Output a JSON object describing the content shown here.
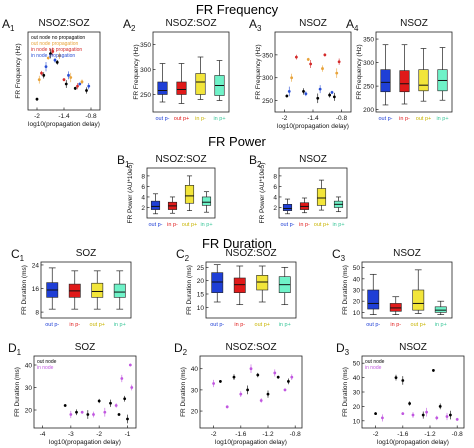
{
  "sections": {
    "frequency": "FR Frequency",
    "power": "FR Power",
    "duration": "FR Duration"
  },
  "colors": {
    "out_no_prop": "#000000",
    "out_prop": "#e8a33a",
    "in_no_prop": "#d42a2a",
    "in_prop": "#2a4fd4",
    "box_blue": "#1f3fd6",
    "box_red": "#e01a1a",
    "box_yellow": "#f2e53a",
    "box_cyan": "#6ff2c8",
    "in_node_purple": "#c157e0"
  },
  "chart_data": [
    {
      "id": "A1",
      "panel_label": "A",
      "panel_sub": "1",
      "type": "scatter",
      "title": "NSOZ:SOZ",
      "xlabel": "log10(propagation delay)",
      "ylabel": "FR Frequency (Hz)",
      "xticks": [
        -2,
        -1.4,
        -0.8
      ],
      "xlim": [
        -2.2,
        -0.6
      ],
      "ylim": [
        220,
        400
      ],
      "legend": [
        "out node no propagation",
        "out node propagation",
        "in node no propagation",
        "in node propagation"
      ],
      "legend_position": "top-left",
      "series": [
        {
          "name": "out node no propagation",
          "color_key": "out_no_prop",
          "points": [
            [
              -2.0,
              245
            ],
            [
              -1.85,
              300
            ],
            [
              -1.7,
              350
            ],
            [
              -1.55,
              330
            ],
            [
              -1.35,
              280
            ],
            [
              -1.15,
              270
            ],
            [
              -0.9,
              265
            ]
          ]
        },
        {
          "name": "out node propagation",
          "color_key": "out_prop",
          "points": [
            [
              -1.95,
              290
            ],
            [
              -1.75,
              340
            ],
            [
              -1.5,
              345
            ],
            [
              -1.25,
              295
            ],
            [
              -1.0,
              285
            ]
          ]
        },
        {
          "name": "in node no propagation",
          "color_key": "in_no_prop",
          "points": [
            [
              -1.9,
              305
            ],
            [
              -1.65,
              355
            ],
            [
              -1.4,
              290
            ],
            [
              -1.1,
              275
            ]
          ]
        },
        {
          "name": "in node propagation",
          "color_key": "in_prop",
          "points": [
            [
              -1.8,
              320
            ],
            [
              -1.6,
              335
            ],
            [
              -1.3,
              300
            ],
            [
              -1.05,
              280
            ],
            [
              -0.85,
              275
            ]
          ]
        }
      ]
    },
    {
      "id": "A2",
      "panel_label": "A",
      "panel_sub": "2",
      "type": "box",
      "title": "NSOZ:SOZ",
      "ylabel": "FR Frequency (Hz)",
      "yticks": [
        250,
        300,
        350
      ],
      "ylim": [
        215,
        375
      ],
      "categories": [
        "out p-",
        "out p+",
        "in p-",
        "in p+"
      ],
      "boxes": [
        {
          "min": 235,
          "q1": 250,
          "median": 258,
          "q3": 275,
          "max": 312,
          "color_key": "box_blue"
        },
        {
          "min": 232,
          "q1": 250,
          "median": 260,
          "q3": 275,
          "max": 312,
          "color_key": "box_red"
        },
        {
          "min": 240,
          "q1": 250,
          "median": 275,
          "q3": 292,
          "max": 325,
          "color_key": "box_yellow"
        },
        {
          "min": 238,
          "q1": 248,
          "median": 268,
          "q3": 288,
          "max": 318,
          "color_key": "box_cyan"
        }
      ]
    },
    {
      "id": "A3",
      "panel_label": "A",
      "panel_sub": "3",
      "type": "scatter",
      "title": "NSOZ",
      "xlabel": "log10(propagation delay)",
      "ylabel": "FR Frequency (Hz)",
      "xticks": [
        -2,
        -1.4,
        -0.8
      ],
      "xlim": [
        -2.2,
        -0.6
      ],
      "yticks": [
        250,
        300,
        350
      ],
      "ylim": [
        225,
        400
      ],
      "series": [
        {
          "name": "out node no propagation",
          "color_key": "out_no_prop",
          "points": [
            [
              -1.95,
              260
            ],
            [
              -1.6,
              270
            ],
            [
              -1.3,
              255
            ],
            [
              -1.05,
              262
            ],
            [
              -0.95,
              258
            ]
          ]
        },
        {
          "name": "out node propagation",
          "color_key": "out_prop",
          "points": [
            [
              -1.85,
              300
            ],
            [
              -1.5,
              340
            ],
            [
              -1.2,
              320
            ],
            [
              -0.9,
              310
            ]
          ]
        },
        {
          "name": "in node no propagation",
          "color_key": "in_no_prop",
          "points": [
            [
              -1.75,
              345
            ],
            [
              -1.45,
              330
            ],
            [
              -1.15,
              350
            ],
            [
              -0.85,
              335
            ]
          ]
        },
        {
          "name": "in node propagation",
          "color_key": "in_prop",
          "points": [
            [
              -1.9,
              270
            ],
            [
              -1.55,
              265
            ],
            [
              -1.25,
              275
            ],
            [
              -1.0,
              268
            ]
          ]
        }
      ]
    },
    {
      "id": "A4",
      "panel_label": "A",
      "panel_sub": "4",
      "type": "box",
      "title": "NSOZ",
      "ylabel": "FR Frequency (Hz)",
      "yticks": [
        200,
        250,
        300,
        350
      ],
      "ylim": [
        195,
        365
      ],
      "categories": [
        "out p-",
        "in p-",
        "out p+",
        "in p+"
      ],
      "boxes": [
        {
          "min": 210,
          "q1": 238,
          "median": 258,
          "q3": 285,
          "max": 338,
          "color_key": "box_blue"
        },
        {
          "min": 212,
          "q1": 238,
          "median": 255,
          "q3": 283,
          "max": 338,
          "color_key": "box_red"
        },
        {
          "min": 218,
          "q1": 240,
          "median": 252,
          "q3": 285,
          "max": 330,
          "color_key": "box_yellow"
        },
        {
          "min": 220,
          "q1": 240,
          "median": 262,
          "q3": 285,
          "max": 332,
          "color_key": "box_cyan"
        }
      ]
    },
    {
      "id": "B1",
      "panel_label": "B",
      "panel_sub": "1",
      "type": "box",
      "title": "NSOZ:SOZ",
      "ylabel": "FR Power (AU*10e5)",
      "yticks": [
        2,
        4,
        6,
        8
      ],
      "ylim": [
        0,
        9.5
      ],
      "categories": [
        "out p-",
        "in p-",
        "out p+",
        "in p+"
      ],
      "boxes": [
        {
          "min": 0.8,
          "q1": 1.6,
          "median": 2.2,
          "q3": 3.2,
          "max": 4.6,
          "color_key": "box_blue"
        },
        {
          "min": 0.9,
          "q1": 1.6,
          "median": 2.3,
          "q3": 3.0,
          "max": 4.0,
          "color_key": "box_red"
        },
        {
          "min": 1.4,
          "q1": 2.8,
          "median": 4.2,
          "q3": 6.2,
          "max": 8.0,
          "color_key": "box_yellow"
        },
        {
          "min": 1.1,
          "q1": 2.4,
          "median": 3.0,
          "q3": 4.0,
          "max": 5.0,
          "color_key": "box_cyan"
        }
      ]
    },
    {
      "id": "B2",
      "panel_label": "B",
      "panel_sub": "2",
      "type": "box",
      "title": "NSOZ",
      "ylabel": "FR Power (AU*10e5)",
      "yticks": [
        2,
        4,
        6,
        8
      ],
      "ylim": [
        0,
        9.5
      ],
      "categories": [
        "out p-",
        "in p-",
        "out p+",
        "in p+"
      ],
      "boxes": [
        {
          "min": 0.8,
          "q1": 1.4,
          "median": 1.8,
          "q3": 2.6,
          "max": 3.6,
          "color_key": "box_blue"
        },
        {
          "min": 1.0,
          "q1": 1.6,
          "median": 2.2,
          "q3": 2.9,
          "max": 3.8,
          "color_key": "box_red"
        },
        {
          "min": 1.5,
          "q1": 2.4,
          "median": 3.8,
          "q3": 5.6,
          "max": 7.2,
          "color_key": "box_yellow"
        },
        {
          "min": 1.2,
          "q1": 2.0,
          "median": 2.6,
          "q3": 3.2,
          "max": 4.0,
          "color_key": "box_cyan"
        }
      ]
    },
    {
      "id": "C1",
      "panel_label": "C",
      "panel_sub": "1",
      "type": "box",
      "title": "SOZ",
      "ylabel": "FR Duration (ms)",
      "yticks": [
        8,
        16,
        24
      ],
      "ylim": [
        6,
        25
      ],
      "categories": [
        "out p-",
        "in p-",
        "out p+",
        "in p+"
      ],
      "boxes": [
        {
          "min": 9,
          "q1": 13,
          "median": 15.5,
          "q3": 18,
          "max": 23,
          "color_key": "box_blue"
        },
        {
          "min": 9,
          "q1": 13,
          "median": 15.2,
          "q3": 17.5,
          "max": 22,
          "color_key": "box_red"
        },
        {
          "min": 9,
          "q1": 13,
          "median": 15.0,
          "q3": 17.8,
          "max": 22,
          "color_key": "box_yellow"
        },
        {
          "min": 9,
          "q1": 13,
          "median": 14.8,
          "q3": 17.5,
          "max": 22,
          "color_key": "box_cyan"
        }
      ]
    },
    {
      "id": "C2",
      "panel_label": "C",
      "panel_sub": "2",
      "type": "box",
      "title": "NSOZ:SOZ",
      "ylabel": "FR Duration (ms)",
      "yticks": [
        10,
        15,
        20,
        25
      ],
      "ylim": [
        6,
        27
      ],
      "categories": [
        "out p-",
        "in p-",
        "out p+",
        "in p+"
      ],
      "boxes": [
        {
          "min": 12,
          "q1": 15.5,
          "median": 19.5,
          "q3": 23,
          "max": 26,
          "color_key": "box_blue"
        },
        {
          "min": 11,
          "q1": 15.5,
          "median": 18.5,
          "q3": 21,
          "max": 25.5,
          "color_key": "box_red"
        },
        {
          "min": 12,
          "q1": 16.5,
          "median": 19.5,
          "q3": 22,
          "max": 25.5,
          "color_key": "box_yellow"
        },
        {
          "min": 11,
          "q1": 15.5,
          "median": 18.5,
          "q3": 21.5,
          "max": 25,
          "color_key": "box_cyan"
        }
      ]
    },
    {
      "id": "C3",
      "panel_label": "C",
      "panel_sub": "3",
      "type": "box",
      "title": "NSOZ",
      "ylabel": "FR Duration (ms)",
      "yticks": [
        10,
        20,
        30,
        40,
        50
      ],
      "ylim": [
        5,
        55
      ],
      "categories": [
        "out p-",
        "in p-",
        "out p+",
        "in p+"
      ],
      "boxes": [
        {
          "min": 8,
          "q1": 13,
          "median": 18,
          "q3": 30,
          "max": 44,
          "color_key": "box_blue"
        },
        {
          "min": 8,
          "q1": 11,
          "median": 14,
          "q3": 18,
          "max": 24,
          "color_key": "box_red"
        },
        {
          "min": 9,
          "q1": 12,
          "median": 18,
          "q3": 30,
          "max": 48,
          "color_key": "box_yellow"
        },
        {
          "min": 8,
          "q1": 10,
          "median": 12,
          "q3": 15,
          "max": 20,
          "color_key": "box_cyan"
        }
      ]
    },
    {
      "id": "D1",
      "panel_label": "D",
      "panel_sub": "1",
      "type": "scatter",
      "title": "SOZ",
      "xlabel": "log10(propagation delay)",
      "ylabel": "FR Duration (ms)",
      "xticks": [
        -4,
        -3,
        -2,
        -1
      ],
      "xlim": [
        -4.3,
        -0.7
      ],
      "yticks": [
        20,
        30,
        40
      ],
      "ylim": [
        12,
        44
      ],
      "legend": [
        "out node",
        "in node"
      ],
      "legend_position": "top-left",
      "series": [
        {
          "name": "out node",
          "color_key": "out_no_prop",
          "points": [
            [
              -3.2,
              22
            ],
            [
              -2.8,
              19
            ],
            [
              -2.4,
              18
            ],
            [
              -2.0,
              24
            ],
            [
              -1.6,
              23
            ],
            [
              -1.3,
              18
            ],
            [
              -1.1,
              25
            ],
            [
              -1.0,
              16
            ]
          ]
        },
        {
          "name": "in node",
          "color_key": "in_node_purple",
          "points": [
            [
              -3.0,
              18
            ],
            [
              -2.6,
              19
            ],
            [
              -2.2,
              18
            ],
            [
              -1.8,
              19
            ],
            [
              -1.4,
              22
            ],
            [
              -1.2,
              34
            ],
            [
              -0.9,
              40
            ],
            [
              -0.85,
              30
            ]
          ]
        }
      ]
    },
    {
      "id": "D2",
      "panel_label": "D",
      "panel_sub": "2",
      "type": "scatter",
      "title": "NSOZ:SOZ",
      "xlabel": "log10(propagation delay)",
      "ylabel": "FR Duration (ms)",
      "xticks": [
        -2,
        -1.6,
        -1.2,
        -0.8
      ],
      "xlim": [
        -2.2,
        -0.7
      ],
      "yticks": [
        20,
        30,
        40
      ],
      "ylim": [
        12,
        46
      ],
      "series": [
        {
          "name": "out node",
          "color_key": "out_no_prop",
          "points": [
            [
              -1.9,
              34
            ],
            [
              -1.7,
              36
            ],
            [
              -1.5,
              30
            ],
            [
              -1.35,
              37
            ],
            [
              -1.2,
              28
            ],
            [
              -1.05,
              36
            ],
            [
              -0.9,
              34
            ]
          ]
        },
        {
          "name": "in node",
          "color_key": "in_node_purple",
          "points": [
            [
              -2.0,
              33
            ],
            [
              -1.8,
              22
            ],
            [
              -1.6,
              28
            ],
            [
              -1.45,
              40
            ],
            [
              -1.3,
              25
            ],
            [
              -1.1,
              38
            ],
            [
              -0.95,
              30
            ],
            [
              -0.85,
              36
            ]
          ]
        }
      ]
    },
    {
      "id": "D3",
      "panel_label": "D",
      "panel_sub": "3",
      "type": "scatter",
      "title": "NSOZ",
      "xlabel": "log10(propagation delay)",
      "ylabel": "FR Duration (ms)",
      "xticks": [
        -2,
        -1.6,
        -1.2,
        -0.8
      ],
      "xlim": [
        -2.2,
        -0.7
      ],
      "yticks": [
        10,
        20,
        30,
        40,
        50
      ],
      "ylim": [
        5,
        55
      ],
      "legend": [
        "out node",
        "in node"
      ],
      "legend_position": "top-left",
      "series": [
        {
          "name": "out node",
          "color_key": "out_no_prop",
          "points": [
            [
              -2.0,
              15
            ],
            [
              -1.7,
              40
            ],
            [
              -1.6,
              38
            ],
            [
              -1.5,
              22
            ],
            [
              -1.3,
              14
            ],
            [
              -1.15,
              45
            ],
            [
              -1.05,
              20
            ],
            [
              -0.9,
              14
            ]
          ]
        },
        {
          "name": "in node",
          "color_key": "in_node_purple",
          "points": [
            [
              -1.9,
              12
            ],
            [
              -1.6,
              15
            ],
            [
              -1.45,
              14
            ],
            [
              -1.25,
              16
            ],
            [
              -1.1,
              12
            ],
            [
              -0.95,
              13
            ],
            [
              -0.8,
              11
            ]
          ]
        }
      ]
    }
  ]
}
